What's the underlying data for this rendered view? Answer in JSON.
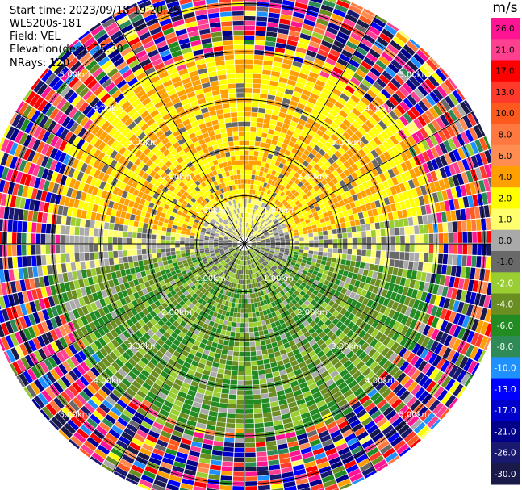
{
  "header": {
    "start_time_label": "Start time:",
    "start_time_value": "2023/09/18 19:20:25",
    "station": "WLS200s-181",
    "field_label": "Field:",
    "field_value": "VEL",
    "elevation_label": "Elevation(deg):",
    "elevation_value": "35.30",
    "nrays_label": "NRays:",
    "nrays_value": "120"
  },
  "chart_data": {
    "type": "heatmap",
    "projection": "polar-ppi",
    "field": "VEL",
    "unit": "m/s",
    "n_rays": 120,
    "max_range_km": 5.5,
    "gate_spacing_km": 0.05,
    "range_rings_km": [
      1.0,
      2.0,
      3.0,
      4.0,
      5.0
    ],
    "range_ring_labels": [
      "1.00km",
      "2.00km",
      "3.00km",
      "4.00km",
      "5.00km"
    ],
    "spokes_deg": [
      0,
      30,
      60,
      90,
      120,
      150,
      180,
      210,
      240,
      270,
      300,
      330
    ],
    "grid": true,
    "colorbar": {
      "placement": "right",
      "ticks": [
        "26.0",
        "21.0",
        "17.0",
        "13.0",
        "10.0",
        "8.0",
        "6.0",
        "4.0",
        "2.0",
        "1.0",
        "0.0",
        "-1.0",
        "-2.0",
        "-4.0",
        "-6.0",
        "-8.0",
        "-10.0",
        "-13.0",
        "-17.0",
        "-21.0",
        "-26.0",
        "-30.0"
      ],
      "colors": [
        "#ff1493",
        "#ff3f8f",
        "#ff0000",
        "#ff3a2a",
        "#ff5a1e",
        "#ff7840",
        "#ff8c50",
        "#ffa000",
        "#ffff00",
        "#ffff6e",
        "#a9a9a9",
        "#696969",
        "#9acd32",
        "#6b8e23",
        "#228b22",
        "#2e8b57",
        "#1e90ff",
        "#0000ff",
        "#0000cd",
        "#00008b",
        "#191970",
        "#1a1a4a"
      ]
    },
    "velocity_pattern": {
      "north_sector_m_s": [
        2.0,
        6.0
      ],
      "south_sector_m_s": [
        -6.0,
        -1.0
      ],
      "near_center_m_s": [
        -1.0,
        1.0
      ],
      "noise_beyond_km": 3.8
    }
  }
}
